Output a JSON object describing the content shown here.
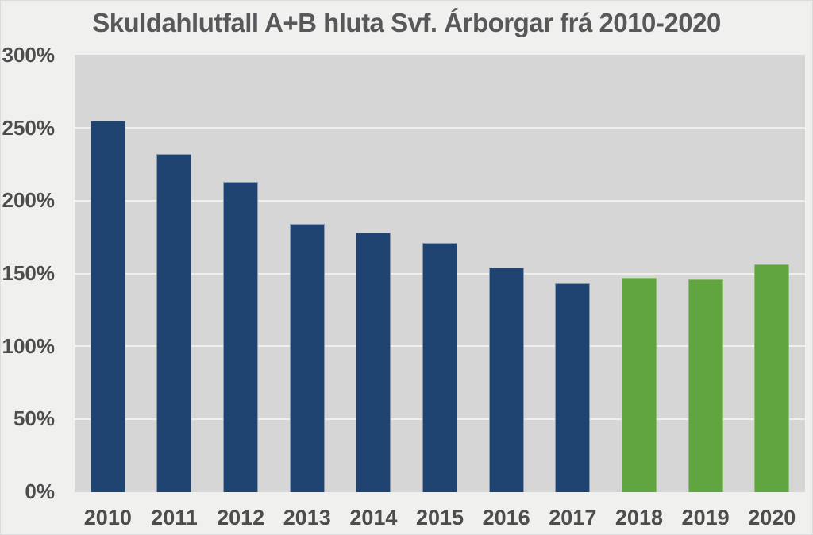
{
  "chart_data": {
    "type": "bar",
    "title": "Skuldahlutfall A+B hluta Svf. Árborgar frá 2010-2020",
    "categories": [
      "2010",
      "2011",
      "2012",
      "2013",
      "2014",
      "2015",
      "2016",
      "2017",
      "2018",
      "2019",
      "2020"
    ],
    "values": [
      255,
      232,
      213,
      184,
      178,
      171,
      154,
      143,
      147,
      146,
      156
    ],
    "value_unit": "%",
    "bar_colors": [
      "#1f4472",
      "#1f4472",
      "#1f4472",
      "#1f4472",
      "#1f4472",
      "#1f4472",
      "#1f4472",
      "#1f4472",
      "#60a53f",
      "#60a53f",
      "#60a53f"
    ],
    "bar_border_colors": [
      "#8899b0",
      "#8899b0",
      "#8899b0",
      "#8899b0",
      "#8899b0",
      "#8899b0",
      "#8899b0",
      "#8899b0",
      "#8dbf6e",
      "#8dbf6e",
      "#8dbf6e"
    ],
    "xlabel": "",
    "ylabel": "",
    "ylim": [
      0,
      300
    ],
    "ytick_step": 50,
    "ytick_labels": [
      "0%",
      "50%",
      "100%",
      "150%",
      "200%",
      "250%",
      "300%"
    ],
    "grid": true,
    "legend": false
  },
  "colors": {
    "navy": "#1f4472",
    "green": "#60a53f",
    "plot_background": "#d6d6d6",
    "page_background": "#f0f0ee",
    "gridline": "#efefee",
    "axis_label": "#4d4d4d",
    "title": "#58585a",
    "canvas_border": "#dcdcdc"
  }
}
